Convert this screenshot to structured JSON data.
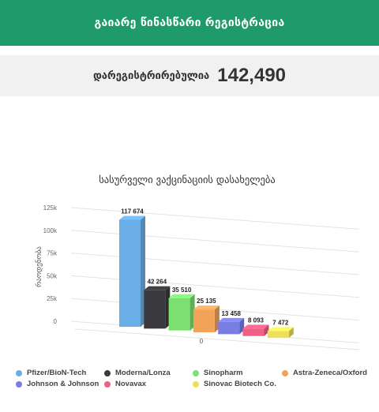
{
  "header": {
    "title": "გაიარე წინასწარი რეგისტრაცია"
  },
  "counter": {
    "label": "დარეგისტრირებულია",
    "value": "142,490"
  },
  "chart_data": {
    "type": "bar",
    "title": "სასურველი ვაქცინაციის დასახელება",
    "ylabel": "რაოდენობა",
    "ylim": [
      0,
      125000
    ],
    "yticks": [
      "0",
      "25k",
      "50k",
      "75k",
      "100k",
      "125k"
    ],
    "xtick_label": "0",
    "grid": true,
    "legend_position": "bottom",
    "categories": [
      "Pfizer/BioN-Tech",
      "Moderna/Lonza",
      "Sinopharm",
      "Astra-Zeneca/Oxford",
      "Johnson & Johnson",
      "Novavax",
      "Sinovac Biotech Co."
    ],
    "values": [
      117674,
      42264,
      35510,
      25135,
      13458,
      8093,
      7472
    ],
    "value_labels": [
      "117 674",
      "42 264",
      "35 510",
      "25 135",
      "13 458",
      "8 093",
      "7 472"
    ],
    "colors": [
      "#6aaee8",
      "#3a3a3e",
      "#7be070",
      "#f2a35a",
      "#7a7ee3",
      "#ef5f86",
      "#ece058"
    ]
  }
}
